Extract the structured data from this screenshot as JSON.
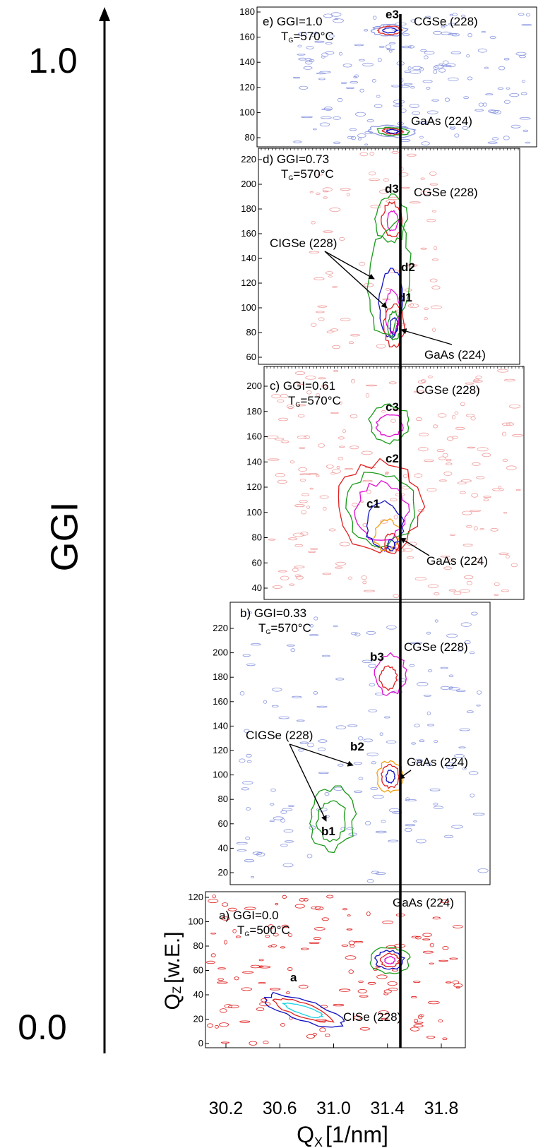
{
  "chart_data": {
    "type": "contour",
    "ggi_axis": {
      "label": "GGI",
      "top_label": "1.0",
      "bottom_label": "0.0"
    },
    "x_axis": {
      "label_main": "Q",
      "label_sub": "X",
      "label_unit": "[1/nm]",
      "ticks": [
        "30.2",
        "30.6",
        "31.0",
        "31.4",
        "31.8"
      ]
    },
    "reference_line_qx": 31.44,
    "panels": [
      {
        "id": "e",
        "title_line1": "e) GGI=1.0",
        "title_line2_T": "T",
        "title_line2_sub": "G",
        "title_line2_rest": "=570°C",
        "y_ticks": [
          "80",
          "100",
          "120",
          "140",
          "160",
          "180"
        ],
        "peak_labels": [
          {
            "text": "e3",
            "bold": true
          },
          {
            "text": "CGSe (228)",
            "bold": false
          },
          {
            "text": "GaAs (224)",
            "bold": false
          }
        ]
      },
      {
        "id": "d",
        "title_line1": "d) GGI=0.73",
        "title_line2_T": "T",
        "title_line2_sub": "G",
        "title_line2_rest": "=570°C",
        "y_ticks": [
          "60",
          "80",
          "100",
          "120",
          "140",
          "160",
          "180",
          "200",
          "220"
        ],
        "peak_labels": [
          {
            "text": "d3",
            "bold": true
          },
          {
            "text": "CGSe (228)",
            "bold": false
          },
          {
            "text": "CIGSe (228)",
            "bold": false
          },
          {
            "text": "d2",
            "bold": true
          },
          {
            "text": "d1",
            "bold": true
          },
          {
            "text": "GaAs (224)",
            "bold": false
          }
        ]
      },
      {
        "id": "c",
        "title_line1": "c) GGI=0.61",
        "title_line2_T": "T",
        "title_line2_sub": "G",
        "title_line2_rest": "=570°C",
        "y_ticks": [
          "40",
          "60",
          "80",
          "100",
          "120",
          "140",
          "160",
          "180",
          "200"
        ],
        "peak_labels": [
          {
            "text": "CGSe (228)",
            "bold": false
          },
          {
            "text": "c3",
            "bold": true
          },
          {
            "text": "c2",
            "bold": true
          },
          {
            "text": "c1",
            "bold": true
          },
          {
            "text": "GaAs (224)",
            "bold": false
          }
        ]
      },
      {
        "id": "b",
        "title_line1": "b) GGI=0.33",
        "title_line2_T": "T",
        "title_line2_sub": "G",
        "title_line2_rest": "=570°C",
        "y_ticks": [
          "20",
          "40",
          "60",
          "80",
          "100",
          "120",
          "140",
          "160",
          "180",
          "200",
          "220"
        ],
        "peak_labels": [
          {
            "text": "b3",
            "bold": true
          },
          {
            "text": "CGSe (228)",
            "bold": false
          },
          {
            "text": "CIGSe (228)",
            "bold": false
          },
          {
            "text": "b2",
            "bold": true
          },
          {
            "text": "GaAs (224)",
            "bold": false
          },
          {
            "text": "b1",
            "bold": true
          }
        ]
      },
      {
        "id": "a",
        "title_line1": "a) GGI=0.0",
        "title_line2_T": "T",
        "title_line2_sub": "G",
        "title_line2_rest": "=500°C",
        "y_ticks": [
          "0",
          "20",
          "40",
          "60",
          "80",
          "100",
          "120"
        ],
        "y_label_main": "Q",
        "y_label_sub": "Z",
        "y_label_unit": "[w.E.]",
        "peak_labels": [
          {
            "text": "GaAs (224)",
            "bold": false
          },
          {
            "text": "a",
            "bold": true
          },
          {
            "text": "CISe (228)",
            "bold": false
          }
        ]
      }
    ],
    "colors": {
      "blue_levels": "#8e9ae0",
      "red": "#e02020",
      "cyan": "#19d2e6",
      "green": "#1a9a1a",
      "magenta": "#e010d0",
      "navy": "#1010c0",
      "pink": "#f0a0a0",
      "bright_green": "#22dd22"
    }
  }
}
